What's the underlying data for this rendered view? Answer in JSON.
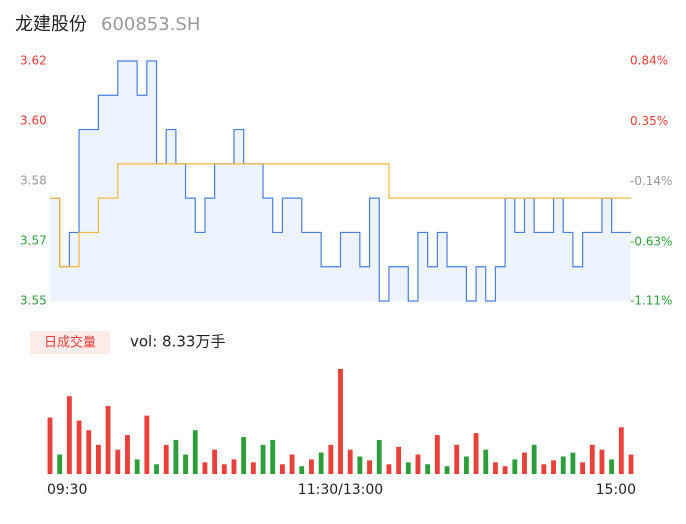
{
  "chart_data": {
    "type": "stock-intraday",
    "title": "龙建股份",
    "subtitle": "600853.SH",
    "volume_tag": "日成交量",
    "volume_label": "vol: 8.33万手",
    "categories": [
      "09:30",
      null,
      null,
      null,
      null,
      null,
      null,
      null,
      null,
      null,
      null,
      null,
      null,
      null,
      null,
      null,
      null,
      null,
      null,
      null,
      null,
      null,
      null,
      null,
      null,
      null,
      null,
      null,
      null,
      null,
      "11:30/13:00",
      null,
      null,
      null,
      null,
      null,
      null,
      null,
      null,
      null,
      null,
      null,
      null,
      null,
      null,
      null,
      null,
      null,
      null,
      null,
      null,
      null,
      null,
      null,
      null,
      null,
      null,
      null,
      null,
      null,
      "15:00"
    ],
    "series": [
      {
        "name": "price",
        "color": "#4a7fe0",
        "values": [
          3.58,
          3.56,
          3.57,
          3.6,
          3.6,
          3.61,
          3.61,
          3.62,
          3.62,
          3.61,
          3.62,
          3.59,
          3.6,
          3.59,
          3.58,
          3.57,
          3.58,
          3.59,
          3.59,
          3.6,
          3.59,
          3.59,
          3.58,
          3.57,
          3.58,
          3.58,
          3.57,
          3.57,
          3.56,
          3.56,
          3.57,
          3.57,
          3.56,
          3.58,
          3.55,
          3.56,
          3.56,
          3.55,
          3.57,
          3.56,
          3.57,
          3.56,
          3.56,
          3.55,
          3.56,
          3.55,
          3.56,
          3.58,
          3.57,
          3.58,
          3.57,
          3.57,
          3.58,
          3.57,
          3.56,
          3.57,
          3.57,
          3.58,
          3.57,
          3.57,
          3.57
        ]
      },
      {
        "name": "average",
        "color": "#f5b83d",
        "values": [
          3.58,
          3.56,
          3.56,
          3.57,
          3.57,
          3.58,
          3.58,
          3.59,
          3.59,
          3.59,
          3.59,
          3.59,
          3.59,
          3.59,
          3.59,
          3.59,
          3.59,
          3.59,
          3.59,
          3.59,
          3.59,
          3.59,
          3.59,
          3.59,
          3.59,
          3.59,
          3.59,
          3.59,
          3.59,
          3.59,
          3.59,
          3.59,
          3.59,
          3.59,
          3.59,
          3.58,
          3.58,
          3.58,
          3.58,
          3.58,
          3.58,
          3.58,
          3.58,
          3.58,
          3.58,
          3.58,
          3.58,
          3.58,
          3.58,
          3.58,
          3.58,
          3.58,
          3.58,
          3.58,
          3.58,
          3.58,
          3.58,
          3.58,
          3.58,
          3.58,
          3.58
        ]
      }
    ],
    "volume": [
      58,
      20,
      80,
      55,
      45,
      30,
      70,
      25,
      40,
      15,
      60,
      10,
      30,
      35,
      20,
      45,
      12,
      25,
      10,
      15,
      38,
      12,
      30,
      35,
      10,
      20,
      8,
      15,
      22,
      30,
      108,
      25,
      18,
      14,
      35,
      10,
      28,
      12,
      20,
      10,
      40,
      8,
      30,
      18,
      42,
      25,
      12,
      8,
      15,
      22,
      30,
      10,
      14,
      18,
      22,
      12,
      30,
      25,
      15,
      48,
      20
    ],
    "volume_ylim": [
      0,
      110
    ],
    "up_color": "#e8403a",
    "down_color": "#2e9e3a",
    "ylim": [
      3.55,
      3.62
    ],
    "yticks": [
      3.62,
      {
        "value": 3.6025,
        "label": "3.60"
      },
      {
        "value": 3.585,
        "label": "3.58"
      },
      {
        "value": 3.5675,
        "label": "3.57"
      },
      3.55
    ],
    "y2lim": [
      -1.11,
      0.84
    ],
    "y2ticks": [
      {
        "value": 0.84,
        "label": "0.84%"
      },
      {
        "value": 0.35,
        "label": "0.35%"
      },
      {
        "value": -0.14,
        "label": "-0.14%"
      },
      {
        "value": -0.63,
        "label": "-0.63%"
      },
      {
        "value": -1.11,
        "label": "-1.11%"
      }
    ]
  }
}
